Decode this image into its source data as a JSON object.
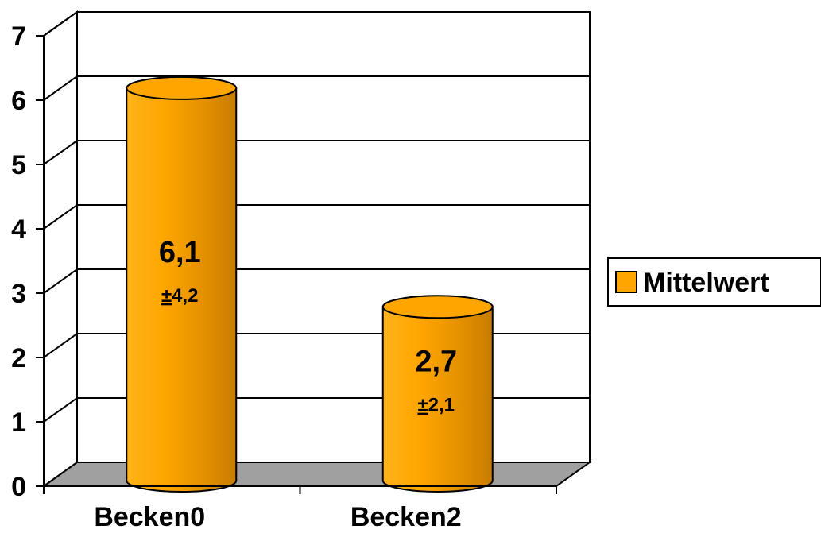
{
  "chart_data": {
    "type": "bar",
    "style": "3d-cylinder",
    "categories": [
      "Becken0",
      "Becken2"
    ],
    "series": [
      {
        "name": "Mittelwert",
        "color": "#FFA500",
        "values": [
          6.1,
          2.7
        ],
        "value_labels": [
          "6,1",
          "2,7"
        ],
        "sd_labels": [
          "4,2",
          "2,1"
        ],
        "sd_prefix": "±"
      }
    ],
    "ylim": [
      0,
      7
    ],
    "yticks": [
      "0",
      "1",
      "2",
      "3",
      "4",
      "5",
      "6",
      "7"
    ],
    "grid": true,
    "legend": "right",
    "floor_color": "#A0A0A0",
    "wall_color": "#FFFFFF"
  }
}
